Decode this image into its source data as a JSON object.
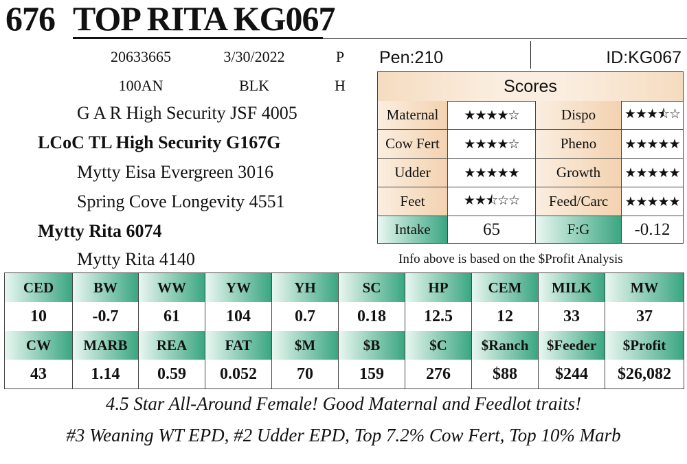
{
  "lot": "676",
  "name": "TOP RITA KG067",
  "info": {
    "row1": [
      "20633665",
      "3/30/2022",
      "P"
    ],
    "row2": [
      "100AN",
      "BLK",
      "H"
    ]
  },
  "pedigree": [
    "G A R High Security JSF 4005",
    "LCoC TL High Security G167G",
    "Mytty Eisa Evergreen 3016",
    "Spring Cove Longevity 4551",
    "Mytty Rita 6074",
    "Mytty Rita 4140"
  ],
  "pen": "Pen:210",
  "id": "ID:KG067",
  "scores": {
    "title": "Scores",
    "rows": [
      {
        "l1": "Maternal",
        "s1": "★★★★☆",
        "l2": "Dispo",
        "s2": "★★★⯪☆"
      },
      {
        "l1": "Cow Fert",
        "s1": "★★★★☆",
        "l2": "Pheno",
        "s2": "★★★★★"
      },
      {
        "l1": "Udder",
        "s1": "★★★★★",
        "l2": "Growth",
        "s2": "★★★★★"
      },
      {
        "l1": "Feet",
        "s1": "★★⯪☆☆",
        "l2": "Feed/Carc",
        "s2": "★★★★★"
      }
    ],
    "intake_label": "Intake",
    "intake_value": "65",
    "fg_label": "F:G",
    "fg_value": "-0.12"
  },
  "note": "Info above is based on the $Profit Analysis",
  "epd": {
    "headers1": [
      "CED",
      "BW",
      "WW",
      "YW",
      "YH",
      "SC",
      "HP",
      "CEM",
      "MILK",
      "MW"
    ],
    "values1": [
      "10",
      "-0.7",
      "61",
      "104",
      "0.7",
      "0.18",
      "12.5",
      "12",
      "33",
      "37"
    ],
    "headers2": [
      "CW",
      "MARB",
      "REA",
      "FAT",
      "$M",
      "$B",
      "$C",
      "$Ranch",
      "$Feeder",
      "$Profit"
    ],
    "values2": [
      "43",
      "1.14",
      "0.59",
      "0.052",
      "70",
      "159",
      "276",
      "$88",
      "$244",
      "$26,082"
    ]
  },
  "tagline1": "4.5 Star All-Around Female! Good Maternal and Feedlot traits!",
  "tagline2": "#3 Weaning WT EPD, #2 Udder EPD, Top 7.2% Cow Fert, Top 10% Marb"
}
